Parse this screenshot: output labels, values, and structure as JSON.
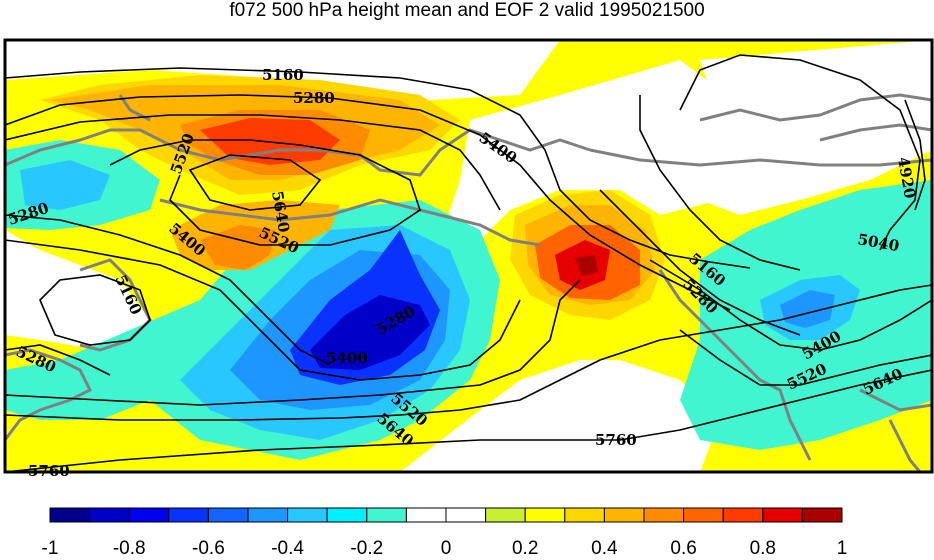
{
  "title": "f072 500 hPa height mean and EOF 2 valid 1995021500",
  "contour_labels": [
    {
      "text": "5160"
    },
    {
      "text": "5280"
    },
    {
      "text": "5400"
    },
    {
      "text": "5520"
    },
    {
      "text": "5640"
    },
    {
      "text": "5280"
    },
    {
      "text": "5400"
    },
    {
      "text": "5520"
    },
    {
      "text": "5160"
    },
    {
      "text": "5280"
    },
    {
      "text": "5280"
    },
    {
      "text": "5400"
    },
    {
      "text": "5520"
    },
    {
      "text": "5640"
    },
    {
      "text": "5160"
    },
    {
      "text": "5280"
    },
    {
      "text": "5400"
    },
    {
      "text": "5520"
    },
    {
      "text": "5640"
    },
    {
      "text": "5760"
    },
    {
      "text": "5040"
    },
    {
      "text": "4920"
    },
    {
      "text": "5760"
    }
  ],
  "colorbar": {
    "colors": [
      "#00008c",
      "#0000c8",
      "#0000f0",
      "#0a32ff",
      "#1464ff",
      "#1e96ff",
      "#28c8ff",
      "#00f0ff",
      "#40f5d0",
      "#ffffff",
      "#ffffff",
      "#c8f032",
      "#ffff00",
      "#ffd700",
      "#ffb400",
      "#ff8c00",
      "#ff6400",
      "#ff3c00",
      "#e60000",
      "#aa0000"
    ],
    "tick_labels": [
      "-1",
      "-0.8",
      "-0.6",
      "-0.4",
      "-0.2",
      "0",
      "0.2",
      "0.4",
      "0.6",
      "0.8",
      "1"
    ]
  },
  "colors": {
    "land_outline": "#808080",
    "contour": "#000000",
    "frame": "#000000"
  }
}
